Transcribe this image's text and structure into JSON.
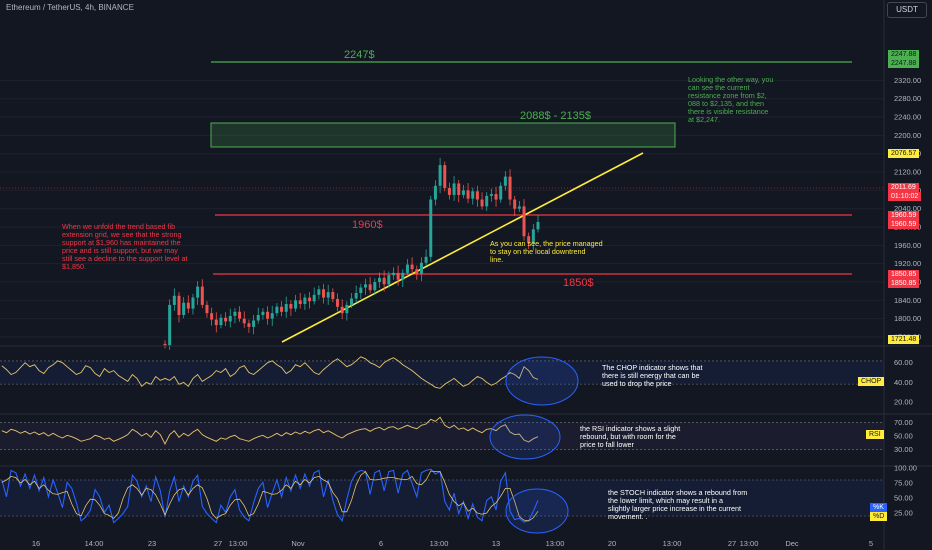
{
  "header": {
    "symbol_title": "Ethereum / TetherUS, 4h, BINANCE",
    "currency": "USDT"
  },
  "annotations": {
    "resistance_high": "2247$",
    "resistance_zone": "2088$ - 2135$",
    "support_1960": "1960$",
    "support_1850": "1850$",
    "note_right": "Looking the other way, you\ncan see the current\nresistance zone from $2,\n088 to $2,135, and then\nthere is visible resistance\nat $2,247.",
    "note_left": "When we unfold the trend based fib\nextension grid, we see that the strong\nsupport at $1,960 has maintained the\nprice and is still support, but we may\nstill see a decline to the support level at\n$1,850.",
    "note_trend": "As you can see, the price managed\nto stay on the local downtrend\nline.",
    "note_chop": "The CHOP indicator shows that\nthere is still energy that can be\nused to drop the price",
    "note_rsi": "the RSI indicator shows a slight\nrebound, but with room for the\nprice to fall lower",
    "note_stoch": "the STOCH indicator shows a rebound from\nthe lower limit, which may result in a\nslightly larger price increase in the current\nmovement. ."
  },
  "price_tags": {
    "t2247a": "2247.88",
    "t2247b": "2247.88",
    "t2076": "2076.57",
    "tcur": "2011.69",
    "tcountdown": "01:10:02",
    "t1960a": "1960.59",
    "t1960b": "1960.59",
    "t1850a": "1850.85",
    "t1850b": "1850.85",
    "t1721": "1721.48",
    "chop_tag": "CHOP",
    "rsi_tag": "RSI",
    "stoch_k": "%K",
    "stoch_d": "%D"
  },
  "colors": {
    "background": "#131722",
    "green": "#4caf50",
    "red": "#f23645",
    "yellow": "#ffeb3b",
    "blue": "#2962ff",
    "indicator": "#e8c46a"
  },
  "chart_data": [
    {
      "type": "candlestick",
      "title": "Ethereum / TetherUS, 4h, BINANCE",
      "x_ticks": [
        "16",
        "14:00",
        "23",
        "27",
        "13:00",
        "Nov",
        "6",
        "13:00",
        "13",
        "13:00",
        "20",
        "13:00",
        "27",
        "13:00",
        "Dec",
        "5"
      ],
      "y_ticks": [
        2320,
        2280,
        2240,
        2200,
        2160,
        2120,
        2080,
        2040,
        2000,
        1960,
        1920,
        1880,
        1840,
        1800,
        1760
      ],
      "ylim": [
        1720,
        2345
      ],
      "close": [
        1742,
        1830,
        1850,
        1808,
        1835,
        1822,
        1846,
        1870,
        1830,
        1812,
        1798,
        1786,
        1802,
        1794,
        1806,
        1815,
        1800,
        1790,
        1782,
        1796,
        1808,
        1815,
        1800,
        1812,
        1826,
        1815,
        1832,
        1822,
        1840,
        1832,
        1846,
        1838,
        1852,
        1864,
        1846,
        1858,
        1843,
        1826,
        1812,
        1830,
        1844,
        1856,
        1868,
        1875,
        1862,
        1880,
        1889,
        1875,
        1895,
        1900,
        1885,
        1900,
        1918,
        1908,
        1898,
        1922,
        1935,
        2060,
        2090,
        2135,
        2085,
        2070,
        2095,
        2070,
        2080,
        2062,
        2078,
        2060,
        2045,
        2068,
        2072,
        2060,
        2090,
        2110,
        2060,
        2040,
        2045,
        1980,
        1965,
        1995,
        2011
      ]
    },
    {
      "type": "line",
      "title": "CHOP",
      "y_ticks": [
        60,
        40,
        20
      ],
      "ylim": [
        20,
        75
      ],
      "values": [
        44,
        42,
        46,
        38,
        40,
        36,
        44,
        48,
        41,
        44,
        47,
        52,
        50,
        54,
        46,
        49,
        55,
        57,
        50,
        48,
        52,
        56,
        60,
        62,
        58,
        55,
        49,
        52,
        58,
        56,
        60,
        55,
        50,
        48,
        53,
        57,
        61,
        64,
        60,
        56,
        58,
        62,
        66,
        64,
        60,
        58,
        55,
        60,
        63,
        65,
        62,
        58,
        55,
        52,
        48,
        44,
        41,
        38,
        35,
        34,
        38,
        41,
        44,
        40,
        36,
        38,
        42,
        46,
        44,
        40,
        37,
        39,
        43,
        46,
        50,
        48,
        44,
        56,
        52,
        45,
        43
      ]
    },
    {
      "type": "line",
      "title": "RSI",
      "y_ticks": [
        70,
        50,
        30
      ],
      "ylim": [
        20,
        80
      ],
      "values": [
        38,
        52,
        58,
        48,
        54,
        50,
        56,
        60,
        52,
        48,
        45,
        42,
        47,
        45,
        49,
        51,
        46,
        44,
        42,
        46,
        49,
        51,
        47,
        50,
        54,
        50,
        55,
        52,
        56,
        53,
        57,
        54,
        58,
        60,
        55,
        58,
        54,
        50,
        47,
        52,
        55,
        58,
        60,
        61,
        57,
        61,
        63,
        59,
        63,
        64,
        60,
        63,
        66,
        63,
        61,
        66,
        68,
        75,
        72,
        78,
        66,
        62,
        66,
        60,
        62,
        58,
        62,
        58,
        55,
        60,
        61,
        58,
        64,
        67,
        56,
        52,
        53,
        44,
        41,
        46,
        49
      ]
    },
    {
      "type": "line",
      "title": "STOCH",
      "y_ticks": [
        100,
        75,
        50,
        25
      ],
      "ylim": [
        0,
        100
      ],
      "series": [
        {
          "name": "%K",
          "values": [
            18,
            62,
            85,
            44,
            70,
            52,
            78,
            88,
            36,
            24,
            16,
            9,
            38,
            26,
            52,
            64,
            30,
            18,
            12,
            42,
            66,
            76,
            34,
            58,
            80,
            52,
            84,
            62,
            88,
            66,
            90,
            70,
            92,
            96,
            52,
            80,
            46,
            22,
            12,
            48,
            78,
            92,
            96,
            94,
            56,
            92,
            96,
            62,
            94,
            96,
            58,
            90,
            96,
            74,
            52,
            92,
            96,
            98,
            90,
            94,
            44,
            30,
            58,
            24,
            44,
            16,
            40,
            18,
            12,
            46,
            52,
            30,
            78,
            92,
            28,
            14,
            16,
            10,
            12,
            28,
            46
          ]
        },
        {
          "name": "%D",
          "values": [
            22,
            40,
            55,
            64,
            66,
            55,
            66,
            72,
            67,
            49,
            25,
            16,
            21,
            24,
            38,
            47,
            48,
            37,
            20,
            24,
            40,
            61,
            59,
            56,
            57,
            63,
            72,
            66,
            78,
            72,
            81,
            75,
            84,
            86,
            80,
            76,
            59,
            49,
            27,
            27,
            46,
            72,
            88,
            94,
            81,
            80,
            81,
            83,
            84,
            84,
            82,
            81,
            81,
            86,
            74,
            72,
            80,
            95,
            94,
            94,
            76,
            56,
            44,
            37,
            42,
            28,
            33,
            25,
            23,
            25,
            36,
            42,
            53,
            66,
            66,
            44,
            19,
            13,
            12,
            17,
            28
          ]
        }
      ]
    }
  ]
}
